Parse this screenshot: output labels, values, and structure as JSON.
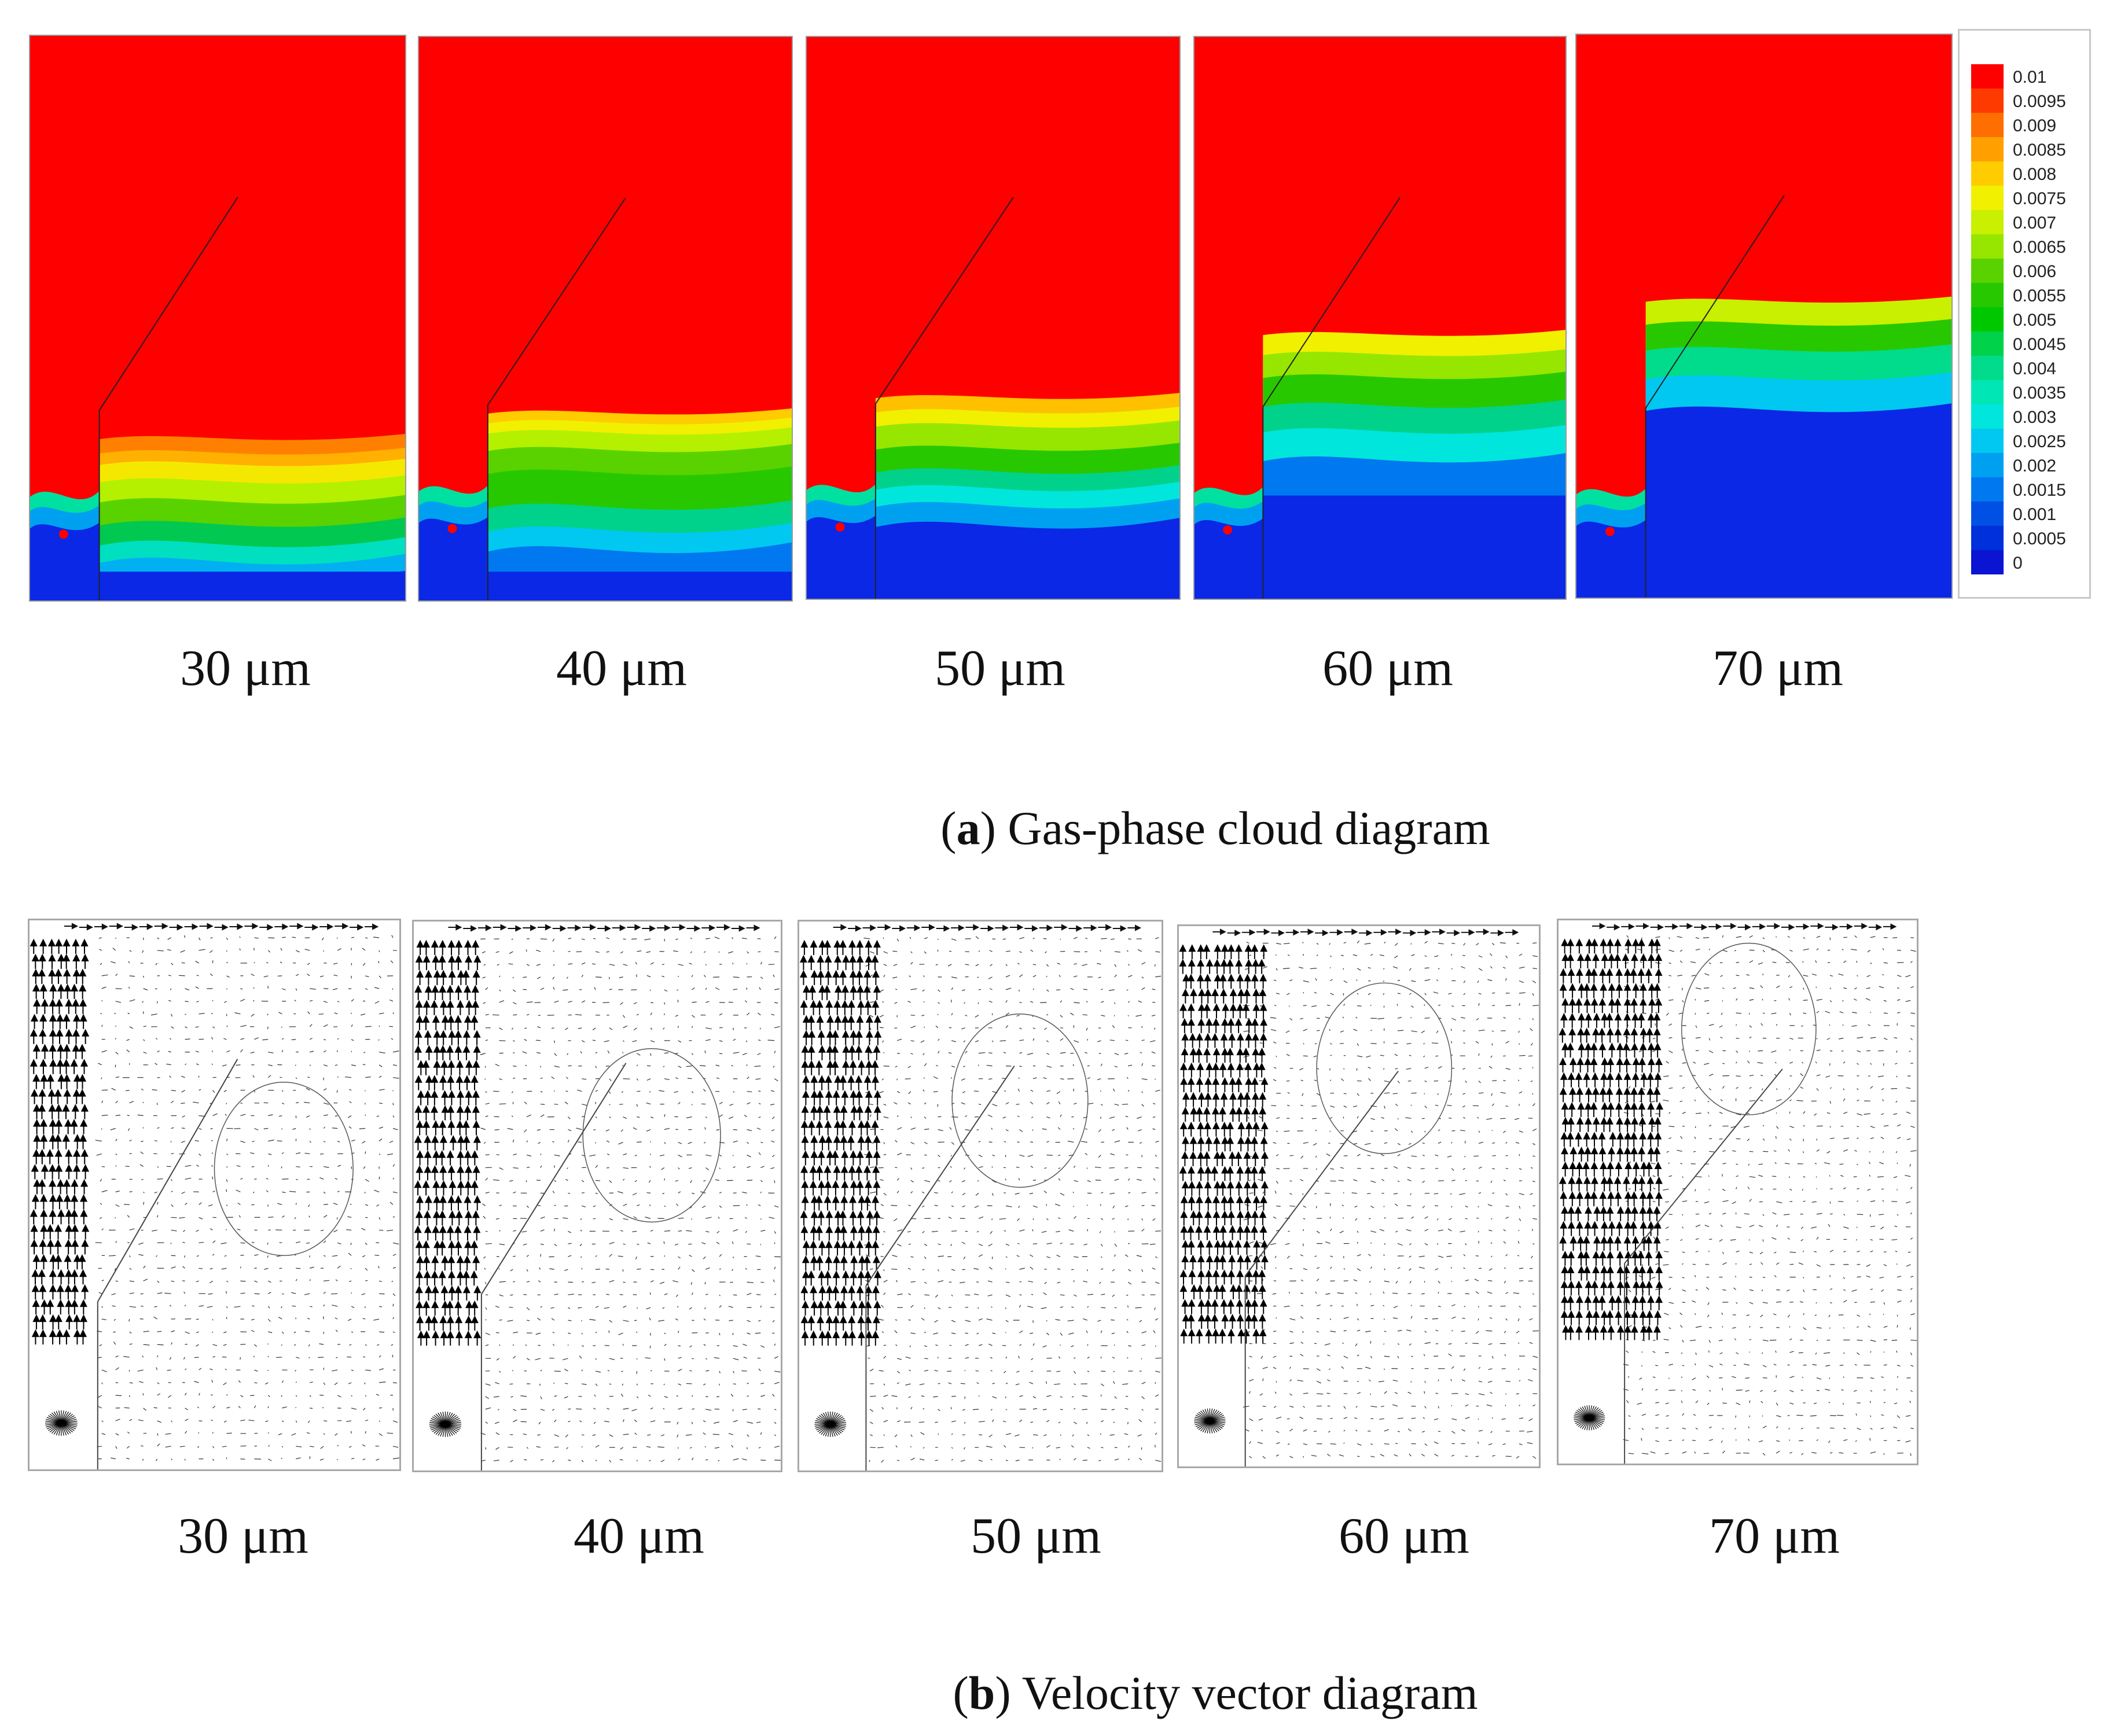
{
  "panel_a": {
    "caption_letter": "a",
    "caption_text": "Gas-phase cloud diagram",
    "labels": [
      "30 μm",
      "40 μm",
      "50 μm",
      "60 μm",
      "70 μm"
    ]
  },
  "panel_b": {
    "caption_letter": "b",
    "caption_text": "Velocity vector diagram",
    "labels": [
      "30 μm",
      "40 μm",
      "50 μm",
      "60 μm",
      "70 μm"
    ]
  },
  "legend": {
    "ticks": [
      "0.01",
      "0.0095",
      "0.009",
      "0.0085",
      "0.008",
      "0.0075",
      "0.007",
      "0.0065",
      "0.006",
      "0.0055",
      "0.005",
      "0.0045",
      "0.004",
      "0.0035",
      "0.003",
      "0.0025",
      "0.002",
      "0.0015",
      "0.001",
      "0.0005",
      "0"
    ],
    "colors": [
      "#ff0000",
      "#ff3a00",
      "#ff6e00",
      "#ffa000",
      "#ffcc00",
      "#f0f000",
      "#c8f000",
      "#96e600",
      "#5ad200",
      "#28c800",
      "#00c800",
      "#00d24a",
      "#00dc8c",
      "#00e6b4",
      "#00e6dc",
      "#00c8f0",
      "#00a0f0",
      "#0078f0",
      "#0050e6",
      "#0030dc",
      "#0a14d2"
    ]
  },
  "colors": {
    "red": "#ff0000",
    "blue": "#0a28e6"
  }
}
